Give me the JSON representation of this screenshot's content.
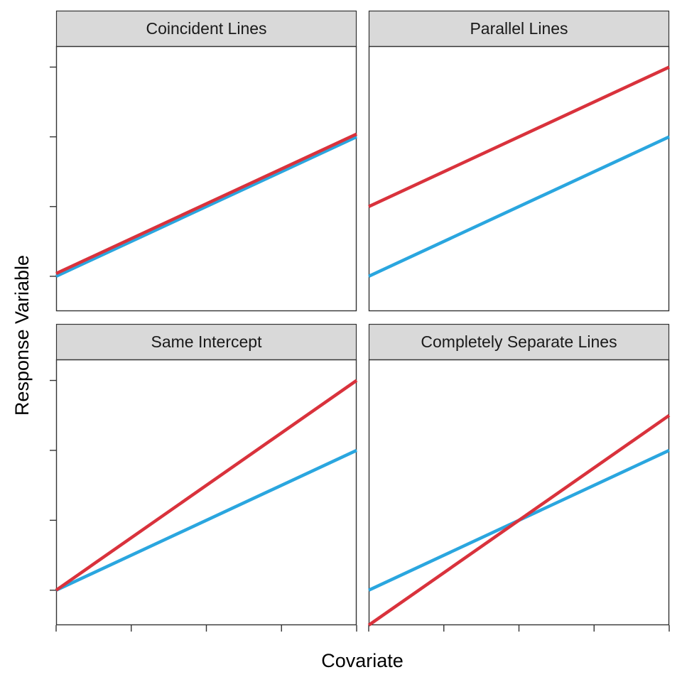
{
  "chart_data": {
    "type": "line",
    "layout": "2x2 facet grid",
    "xlabel": "Covariate",
    "ylabel": "Response Variable",
    "xlim": [
      0,
      4
    ],
    "ylim": [
      -0.5,
      3.3
    ],
    "x_ticks": [
      0,
      1,
      2,
      3,
      4
    ],
    "y_ticks": [
      0,
      1,
      2,
      3
    ],
    "tick_labels_shown": false,
    "grid": false,
    "legend": "none",
    "colors": {
      "series_a": "#2aa6df",
      "series_b": "#d9323c",
      "strip_fill": "#d9d9d9",
      "panel_border": "#333333"
    },
    "panels": [
      {
        "title": "Coincident Lines",
        "series": [
          {
            "color": "#2aa6df",
            "x": [
              0,
              4
            ],
            "y": [
              0,
              2
            ]
          },
          {
            "color": "#d9323c",
            "x": [
              0,
              4
            ],
            "y": [
              0.04,
              2.04
            ]
          }
        ]
      },
      {
        "title": "Parallel Lines",
        "series": [
          {
            "color": "#2aa6df",
            "x": [
              0,
              4
            ],
            "y": [
              0,
              2
            ]
          },
          {
            "color": "#d9323c",
            "x": [
              0,
              4
            ],
            "y": [
              1,
              3
            ]
          }
        ]
      },
      {
        "title": "Same Intercept",
        "series": [
          {
            "color": "#2aa6df",
            "x": [
              0,
              4
            ],
            "y": [
              0,
              2
            ]
          },
          {
            "color": "#d9323c",
            "x": [
              0,
              4
            ],
            "y": [
              0,
              3
            ]
          }
        ]
      },
      {
        "title": "Completely Separate Lines",
        "series": [
          {
            "color": "#2aa6df",
            "x": [
              0,
              4
            ],
            "y": [
              0,
              2
            ]
          },
          {
            "color": "#d9323c",
            "x": [
              0,
              4
            ],
            "y": [
              -0.5,
              2.5
            ]
          }
        ]
      }
    ]
  }
}
